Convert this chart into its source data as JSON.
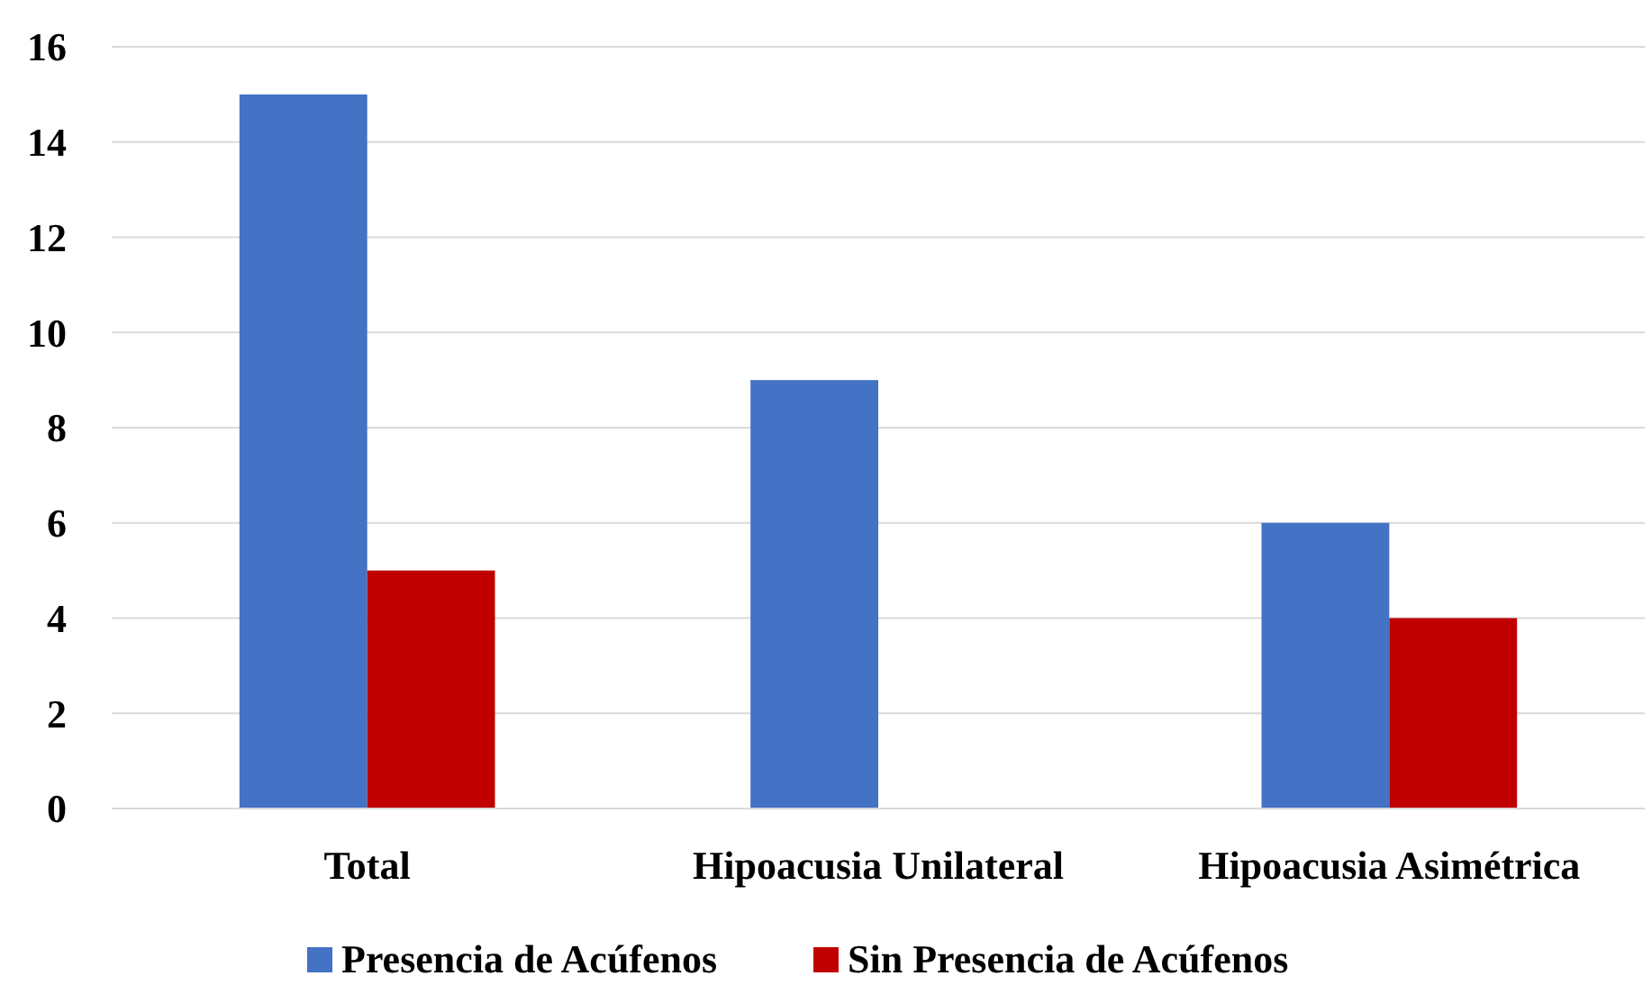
{
  "chart_data": {
    "type": "bar",
    "categories": [
      "Total",
      "Hipoacusia Unilateral",
      "Hipoacusia Asimétrica"
    ],
    "series": [
      {
        "name": "Presencia de Acúfenos",
        "color": "#4472c4",
        "values": [
          15,
          9,
          6
        ]
      },
      {
        "name": "Sin Presencia de Acúfenos",
        "color": "#c00000",
        "values": [
          5,
          0,
          4
        ]
      }
    ],
    "ylim": [
      0,
      16
    ],
    "yticks": [
      0,
      2,
      4,
      6,
      8,
      10,
      12,
      14,
      16
    ],
    "grid": "y",
    "legend": "bottom"
  }
}
